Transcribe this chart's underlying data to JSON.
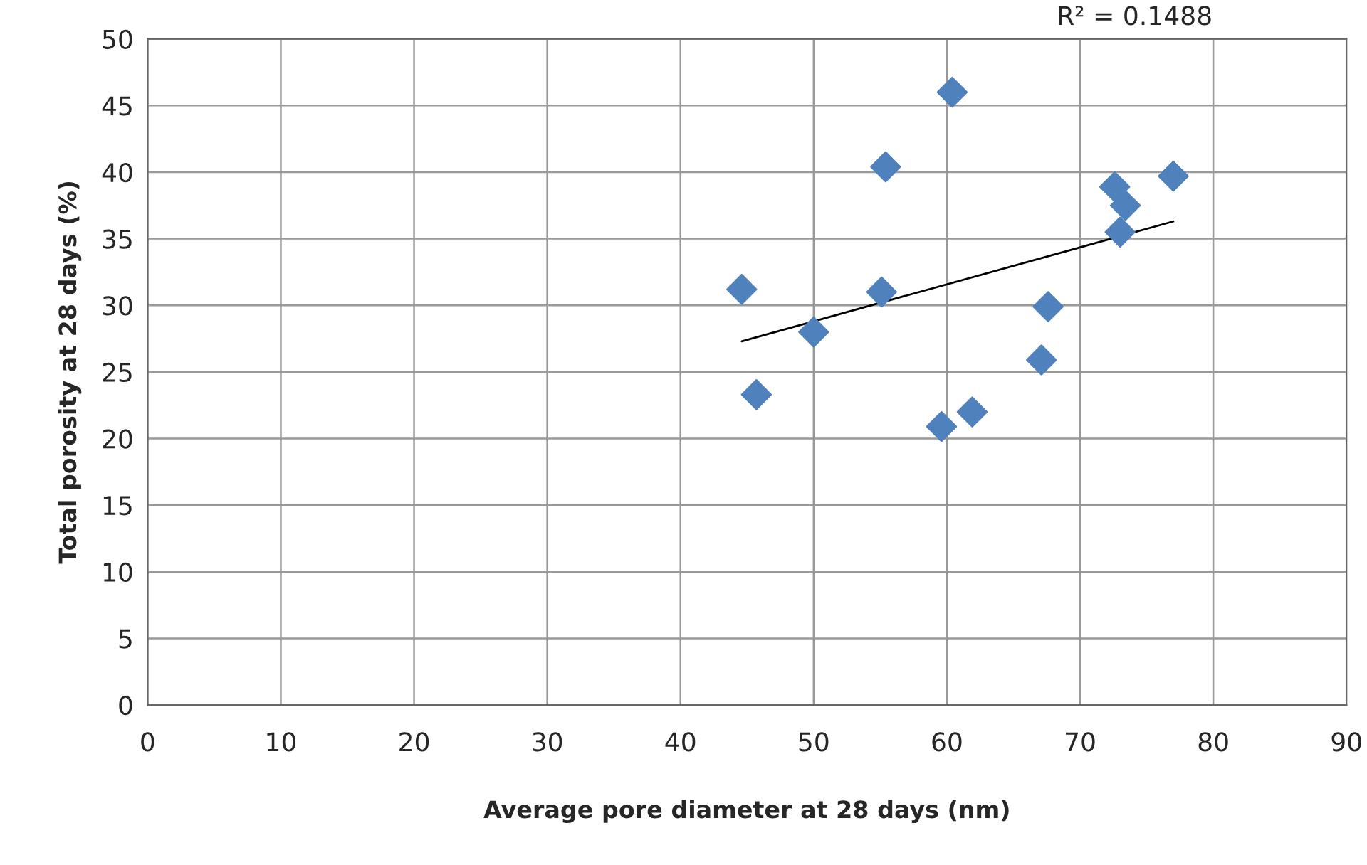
{
  "chart_data": {
    "type": "scatter",
    "xlabel": "Average pore diameter at 28 days (nm)",
    "ylabel": "Total porosity at 28 days (%)",
    "annotations": [
      "R² = 0.1488"
    ],
    "series": [
      {
        "color": "#4f81bd",
        "marker": "diamond",
        "x": [
          44.6,
          45.7,
          50.0,
          55.1,
          55.4,
          60.4,
          59.6,
          61.9,
          67.1,
          67.6,
          72.6,
          73.4,
          73.0,
          77.0
        ],
        "values": [
          31.2,
          23.3,
          28.0,
          31.0,
          40.4,
          46.0,
          20.9,
          22.0,
          25.9,
          29.9,
          38.9,
          37.5,
          35.5,
          39.7
        ]
      },
      {
        "type": "line",
        "color": "#000000",
        "marker": "none",
        "x": [
          44.6,
          77.0
        ],
        "values": [
          27.3,
          36.3
        ]
      }
    ],
    "xlim": [
      0,
      90
    ],
    "xticks": [
      0,
      10,
      20,
      30,
      40,
      50,
      60,
      70,
      80,
      90
    ],
    "ylim": [
      0,
      50
    ],
    "yticks": [
      0,
      5,
      10,
      15,
      20,
      25,
      30,
      35,
      40,
      45,
      50
    ],
    "grid": true
  }
}
